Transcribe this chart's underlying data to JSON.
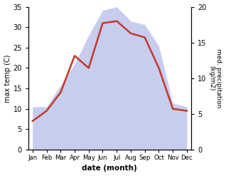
{
  "months": [
    "Jan",
    "Feb",
    "Mar",
    "Apr",
    "May",
    "Jun",
    "Jul",
    "Aug",
    "Sep",
    "Oct",
    "Nov",
    "Dec"
  ],
  "temperature": [
    7,
    9.5,
    14,
    23,
    20,
    31,
    31.5,
    28.5,
    27.5,
    20,
    10,
    9.5
  ],
  "precipitation": [
    6,
    6,
    9,
    12,
    16,
    19.5,
    20,
    18,
    17.5,
    14.5,
    6.5,
    6
  ],
  "temp_ylim": [
    0,
    35
  ],
  "precip_ylim": [
    0,
    20
  ],
  "temp_yticks": [
    0,
    5,
    10,
    15,
    20,
    25,
    30,
    35
  ],
  "precip_yticks": [
    0,
    5,
    10,
    15,
    20
  ],
  "xlabel": "date (month)",
  "ylabel_left": "max temp (C)",
  "ylabel_right": "med. precipitation\n(kg/m2)",
  "line_color": "#c0392b",
  "fill_color": "#b0b8e8",
  "fill_alpha": 0.7,
  "background_color": "#ffffff",
  "line_width": 1.8,
  "temp_scale": 35,
  "precip_scale": 20
}
